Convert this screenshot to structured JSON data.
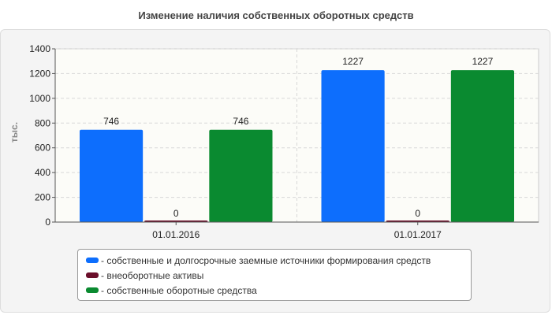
{
  "chart_data": {
    "type": "bar",
    "title": "Изменение наличия собственных оборотных средств",
    "ylabel": "тыс.",
    "xlabel": "",
    "categories": [
      "01.01.2016",
      "01.01.2017"
    ],
    "ylim": [
      0,
      1400
    ],
    "yticks": [
      "0",
      "200",
      "400",
      "600",
      "800",
      "1000",
      "1200",
      "1400"
    ],
    "grid": true,
    "legend_position": "bottom",
    "series": [
      {
        "name": "собственные и долгосрочные заемные источники формирования средств",
        "values": [
          746,
          1227
        ],
        "color": "#0d6efd"
      },
      {
        "name": "внеоборотные активы",
        "values": [
          0,
          0
        ],
        "color": "#6b0f2b"
      },
      {
        "name": "собственные оборотные средства",
        "values": [
          746,
          1227
        ],
        "color": "#0a8a30"
      }
    ]
  }
}
